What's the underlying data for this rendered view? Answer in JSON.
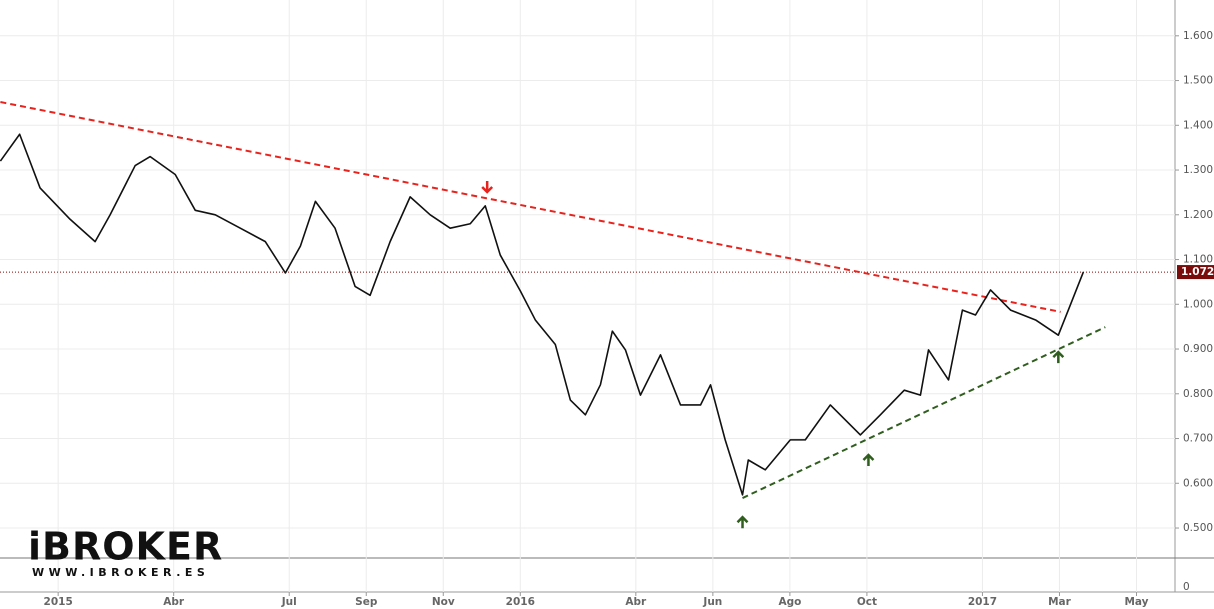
{
  "chart_data": {
    "type": "line",
    "x": [
      -1.5,
      -1.0,
      -0.47,
      0.31,
      0.96,
      1.35,
      2.0,
      2.39,
      3.04,
      3.56,
      4.08,
      4.73,
      5.38,
      5.9,
      6.29,
      6.68,
      7.19,
      7.71,
      8.1,
      8.62,
      9.14,
      9.66,
      10.18,
      10.7,
      11.09,
      11.48,
      12.0,
      12.39,
      12.91,
      13.3,
      13.69,
      14.08,
      14.39,
      14.73,
      15.12,
      15.64,
      16.16,
      16.68,
      16.94,
      17.32,
      17.77,
      17.92,
      18.36,
      19.01,
      19.4,
      20.05,
      20.83,
      21.35,
      21.97,
      22.39,
      22.6,
      23.12,
      23.48,
      23.82,
      24.21,
      24.73,
      25.38,
      25.97,
      26.23,
      26.62
    ],
    "series": [
      {
        "color": "#111111",
        "values": [
          1.32,
          1.38,
          1.26,
          1.19,
          1.14,
          1.2,
          1.31,
          1.33,
          1.29,
          1.21,
          1.2,
          1.17,
          1.14,
          1.07,
          1.13,
          1.23,
          1.17,
          1.04,
          1.02,
          1.14,
          1.24,
          1.2,
          1.17,
          1.18,
          1.22,
          1.11,
          1.03,
          0.965,
          0.91,
          0.786,
          0.753,
          0.82,
          0.94,
          0.898,
          0.797,
          0.887,
          0.775,
          0.775,
          0.82,
          0.697,
          0.574,
          0.652,
          0.63,
          0.697,
          0.697,
          0.775,
          0.708,
          0.753,
          0.808,
          0.797,
          0.898,
          0.831,
          0.987,
          0.976,
          1.032,
          0.987,
          0.965,
          0.931,
          0.987,
          1.072
        ]
      }
    ],
    "xlim": [
      -1.51,
      29.0
    ],
    "xticks": [
      {
        "value": 0,
        "label": "2015"
      },
      {
        "value": 3,
        "label": "Abr"
      },
      {
        "value": 6,
        "label": "Jul"
      },
      {
        "value": 8,
        "label": "Sep"
      },
      {
        "value": 10,
        "label": "Nov"
      },
      {
        "value": 12,
        "label": "2016"
      },
      {
        "value": 15,
        "label": "Abr"
      },
      {
        "value": 17,
        "label": "Jun"
      },
      {
        "value": 19,
        "label": "Ago"
      },
      {
        "value": 21,
        "label": "Oct"
      },
      {
        "value": 24,
        "label": "2017"
      },
      {
        "value": 26,
        "label": "Mar"
      },
      {
        "value": 28,
        "label": "May"
      }
    ],
    "ylim": [
      0.433,
      1.68
    ],
    "yticks": [
      {
        "value": 0.5,
        "label": "0.500"
      },
      {
        "value": 0.6,
        "label": "0.600"
      },
      {
        "value": 0.7,
        "label": "0.700"
      },
      {
        "value": 0.8,
        "label": "0.800"
      },
      {
        "value": 0.9,
        "label": "0.900"
      },
      {
        "value": 1.0,
        "label": "1.000"
      },
      {
        "value": 1.1,
        "label": "1.100"
      },
      {
        "value": 1.2,
        "label": "1.200"
      },
      {
        "value": 1.3,
        "label": "1.300"
      },
      {
        "value": 1.4,
        "label": "1.400"
      },
      {
        "value": 1.5,
        "label": "1.500"
      },
      {
        "value": 1.6,
        "label": "1.600"
      }
    ],
    "grid": true,
    "last_price": {
      "value": 1.072,
      "label": "1.072"
    },
    "volume_axis_label": "0",
    "trendlines": [
      {
        "color": "#e8231d",
        "x": [
          -1.5,
          26.03
        ],
        "values": [
          1.452,
          0.983
        ]
      },
      {
        "color": "#2f5e1e",
        "x": [
          17.77,
          27.19
        ],
        "values": [
          0.567,
          0.949
        ]
      }
    ],
    "markers": [
      {
        "direction": "down",
        "color": "#e8231d",
        "x": 11.14,
        "value": 1.262
      },
      {
        "direction": "up",
        "color": "#2f5e1e",
        "x": 17.77,
        "value": 0.513
      },
      {
        "direction": "up",
        "color": "#2f5e1e",
        "x": 21.04,
        "value": 0.652
      },
      {
        "direction": "up",
        "color": "#2f5e1e",
        "x": 25.97,
        "value": 0.882
      }
    ]
  },
  "logo": {
    "name": "iBROKER",
    "url": "WWW.IBROKER.ES"
  }
}
